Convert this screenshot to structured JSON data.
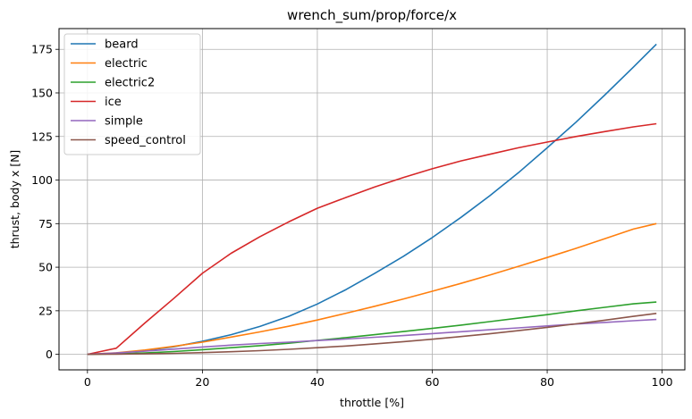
{
  "chart_data": {
    "type": "line",
    "title": "wrench_sum/prop/force/x",
    "xlabel": "throttle [%]",
    "ylabel": "thrust, body x [N]",
    "xlim": [
      -4.95,
      103.95
    ],
    "ylim": [
      -8.9,
      186.9
    ],
    "xticks": [
      0,
      20,
      40,
      60,
      80,
      100
    ],
    "yticks": [
      0,
      25,
      50,
      75,
      100,
      125,
      150,
      175
    ],
    "grid": true,
    "legend_position": "top-left",
    "x": [
      0,
      5,
      10,
      15,
      20,
      25,
      30,
      35,
      40,
      45,
      50,
      55,
      60,
      65,
      70,
      75,
      80,
      85,
      90,
      95,
      99
    ],
    "series": [
      {
        "name": "beard",
        "color": "#1f77b4",
        "values": [
          0,
          0.6,
          2.2,
          4.3,
          7.5,
          11.3,
          16.0,
          21.8,
          28.9,
          37.2,
          46.5,
          56.3,
          67.0,
          78.6,
          91.0,
          104.2,
          118.5,
          133.2,
          148.7,
          164.8,
          178.0
        ]
      },
      {
        "name": "electric",
        "color": "#ff7f0e",
        "values": [
          0,
          0.9,
          2.5,
          4.6,
          7.0,
          9.9,
          12.9,
          16.1,
          19.7,
          23.6,
          27.6,
          31.8,
          36.2,
          40.7,
          45.5,
          50.5,
          55.6,
          60.8,
          66.3,
          71.9,
          75.0
        ]
      },
      {
        "name": "electric2",
        "color": "#2ca02c",
        "values": [
          0,
          0.3,
          0.8,
          1.6,
          2.7,
          3.8,
          5.0,
          6.4,
          8.0,
          9.6,
          11.3,
          13.1,
          14.9,
          16.8,
          18.8,
          20.8,
          22.8,
          25.0,
          27.0,
          29.0,
          30.0
        ]
      },
      {
        "name": "ice",
        "color": "#d62728",
        "values": [
          0,
          3.5,
          18.0,
          32.0,
          46.5,
          58.0,
          67.5,
          76.0,
          83.8,
          90.0,
          96.0,
          101.5,
          106.5,
          111.0,
          114.8,
          118.5,
          121.8,
          125.0,
          127.8,
          130.5,
          132.3
        ]
      },
      {
        "name": "simple",
        "color": "#9467bd",
        "values": [
          0,
          0.8,
          1.8,
          3.0,
          4.2,
          5.3,
          6.2,
          7.0,
          7.9,
          8.8,
          9.8,
          10.8,
          11.9,
          13.0,
          14.1,
          15.2,
          16.3,
          17.4,
          18.3,
          19.3,
          20.0
        ]
      },
      {
        "name": "speed_control",
        "color": "#8c564b",
        "values": [
          0,
          0.1,
          0.3,
          0.6,
          1.0,
          1.5,
          2.1,
          2.9,
          3.8,
          4.8,
          6.0,
          7.3,
          8.7,
          10.2,
          11.8,
          13.6,
          15.5,
          17.5,
          19.6,
          21.8,
          23.5
        ]
      }
    ]
  }
}
